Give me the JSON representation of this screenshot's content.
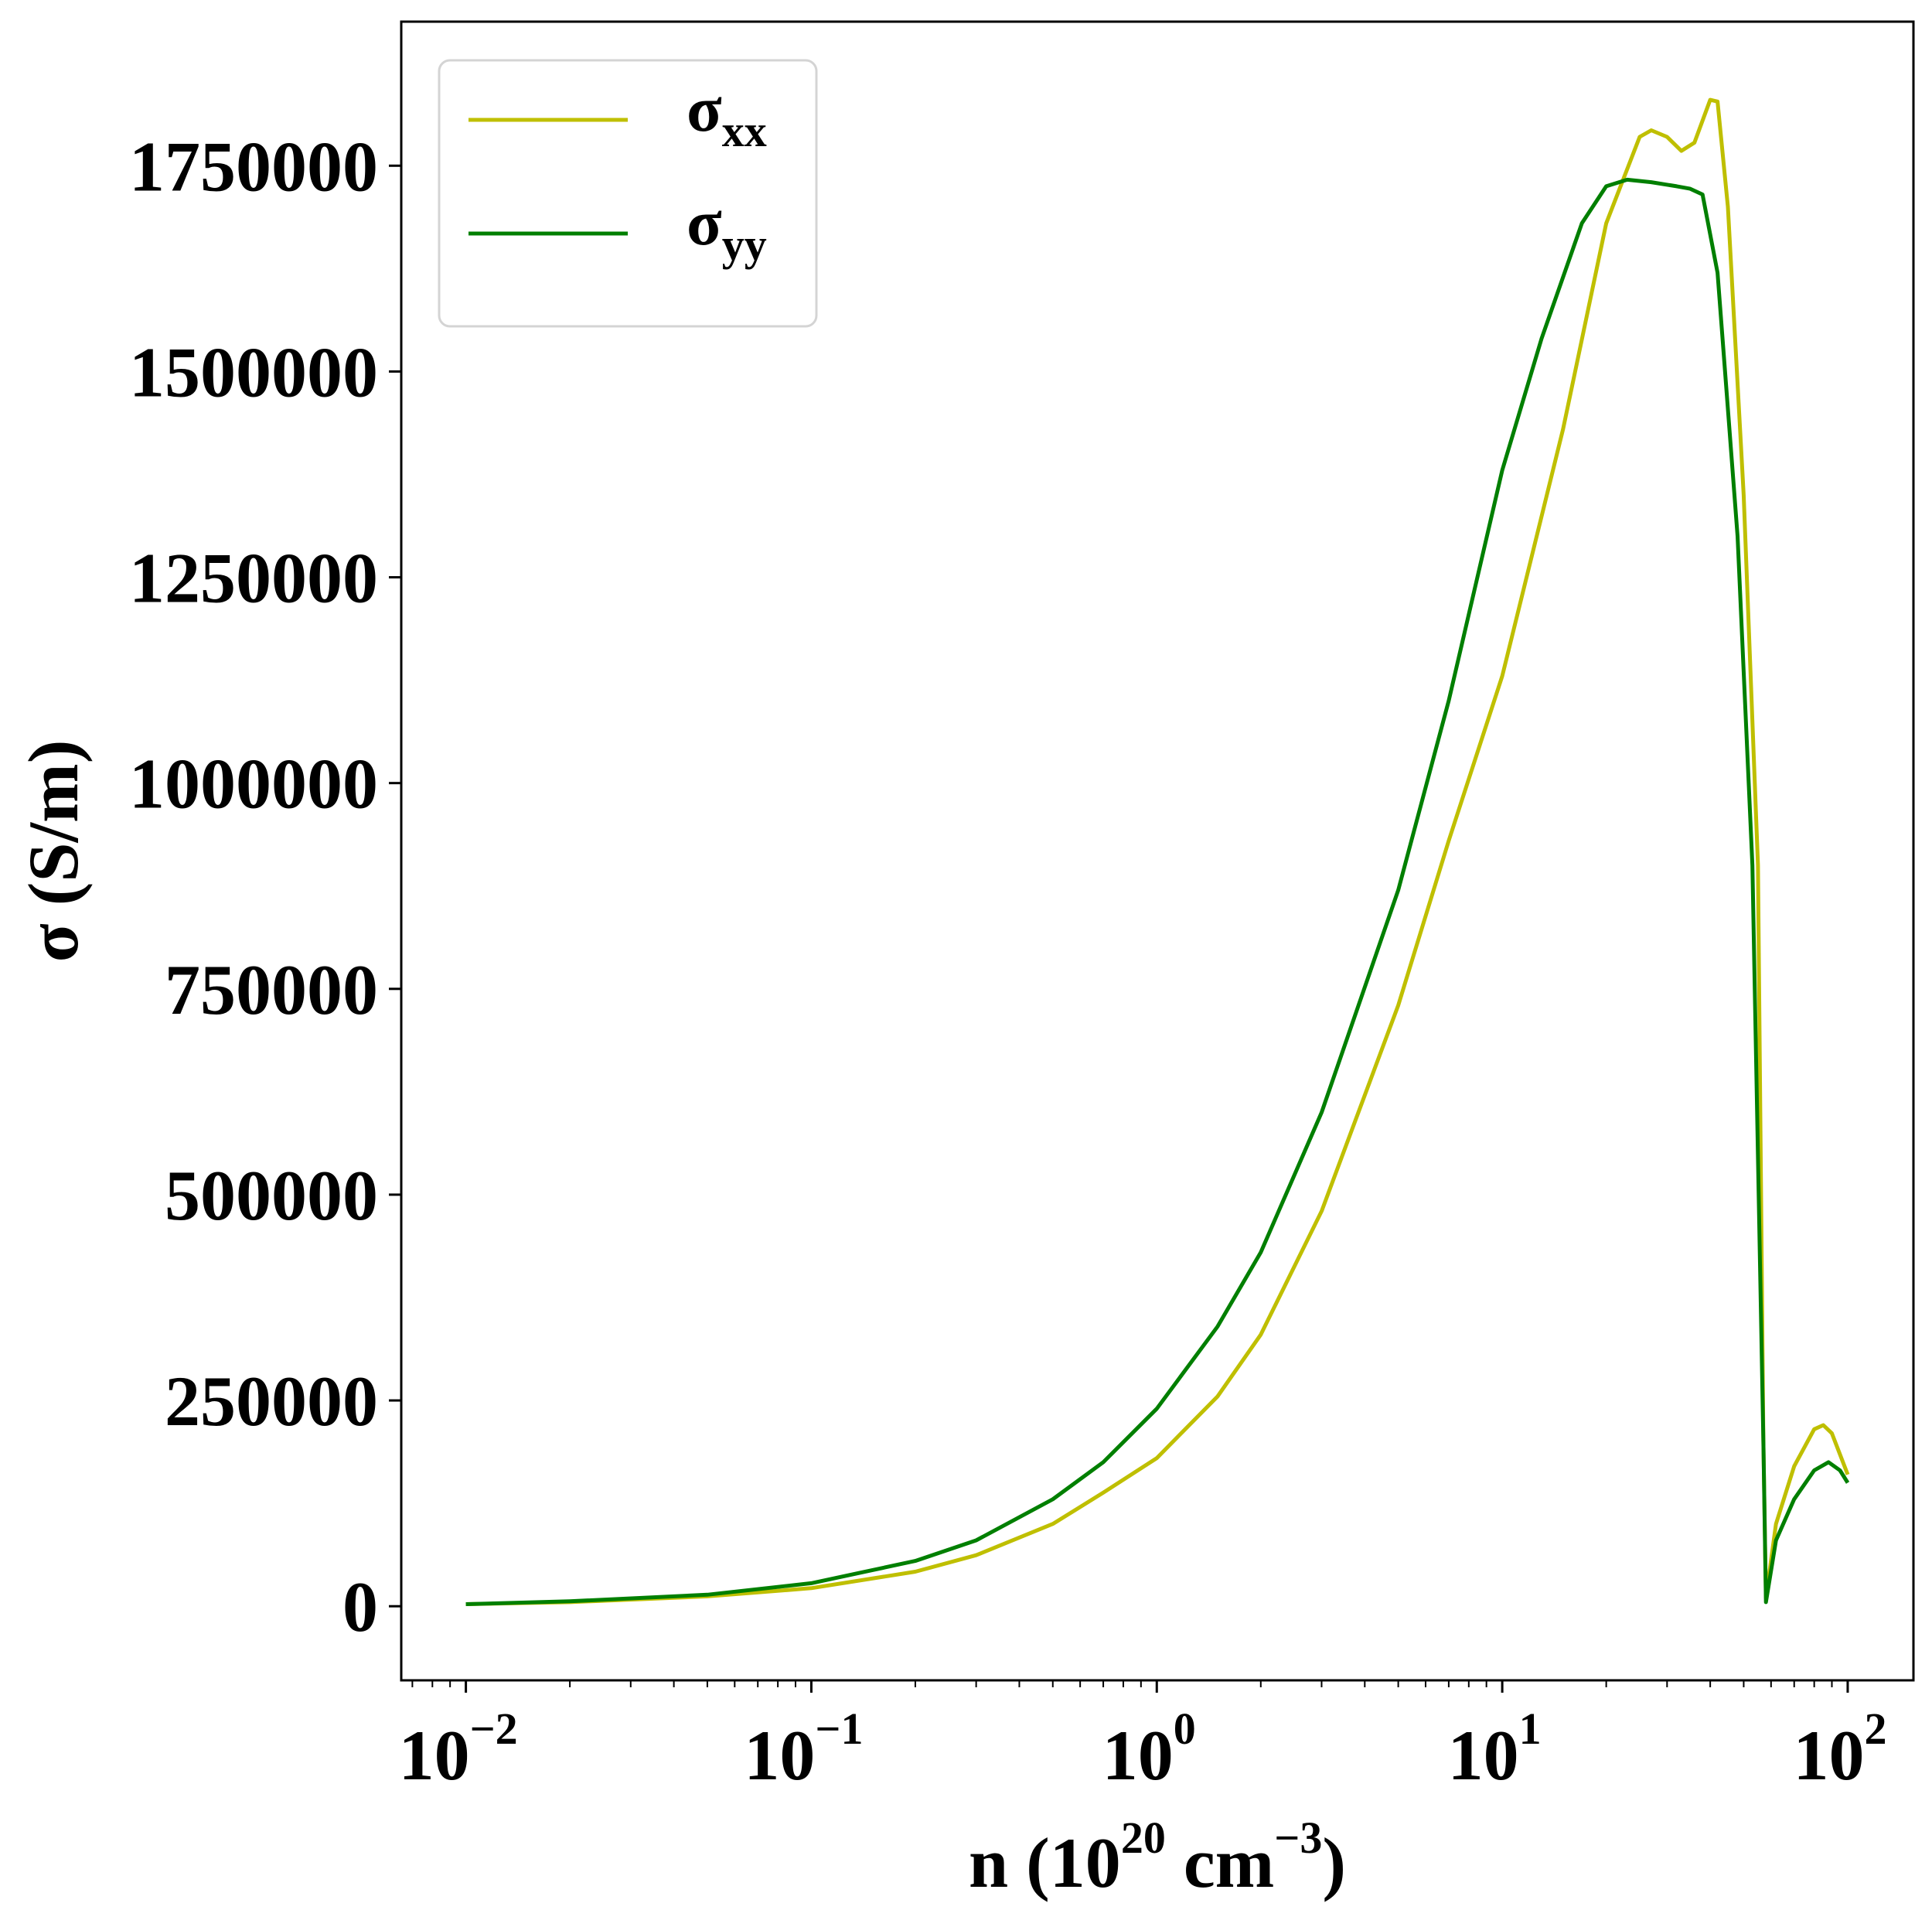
{
  "chart_data": {
    "type": "line",
    "xlabel": {
      "prefix": "n (10",
      "exp1": "20",
      "mid": " cm",
      "exp2": "−3",
      "suffix": ")"
    },
    "ylabel": "σ (S/m)",
    "xscale": "log",
    "xlim": [
      0.0065,
      155
    ],
    "ylim": [
      -90000,
      1925000
    ],
    "x_ticks": [
      {
        "value": 0.01,
        "base": "10",
        "exp": "−2"
      },
      {
        "value": 0.1,
        "base": "10",
        "exp": "−1"
      },
      {
        "value": 1,
        "base": "10",
        "exp": "0"
      },
      {
        "value": 10,
        "base": "10",
        "exp": "1"
      },
      {
        "value": 100,
        "base": "10",
        "exp": "2"
      }
    ],
    "y_ticks": [
      {
        "value": 0,
        "label": "0"
      },
      {
        "value": 250000,
        "label": "250000"
      },
      {
        "value": 500000,
        "label": "500000"
      },
      {
        "value": 750000,
        "label": "750000"
      },
      {
        "value": 1000000,
        "label": "1000000"
      },
      {
        "value": 1250000,
        "label": "1250000"
      },
      {
        "value": 1500000,
        "label": "1500000"
      },
      {
        "value": 1750000,
        "label": "1750000"
      }
    ],
    "grid": false,
    "legend_position": "top-left",
    "series": [
      {
        "name": "σ",
        "sub": "xx",
        "color": "#bfbf00",
        "points": [
          [
            0.01,
            2500
          ],
          [
            0.02,
            5000
          ],
          [
            0.05,
            12000
          ],
          [
            0.1,
            22000
          ],
          [
            0.2,
            42000
          ],
          [
            0.3,
            62000
          ],
          [
            0.5,
            100000
          ],
          [
            0.7,
            138000
          ],
          [
            1,
            180000
          ],
          [
            1.5,
            255000
          ],
          [
            2,
            330000
          ],
          [
            3,
            480000
          ],
          [
            5,
            730000
          ],
          [
            7,
            930000
          ],
          [
            10,
            1130000
          ],
          [
            15,
            1430000
          ],
          [
            20,
            1680000
          ],
          [
            25,
            1785000
          ],
          [
            27,
            1793000
          ],
          [
            30,
            1785000
          ],
          [
            33,
            1768000
          ],
          [
            36,
            1778000
          ],
          [
            40,
            1830000
          ],
          [
            42,
            1828000
          ],
          [
            45,
            1700000
          ],
          [
            50,
            1350000
          ],
          [
            55,
            900000
          ],
          [
            57,
            200000
          ],
          [
            58,
            10000
          ],
          [
            62,
            100000
          ],
          [
            70,
            170000
          ],
          [
            80,
            215000
          ],
          [
            85,
            220000
          ],
          [
            90,
            210000
          ],
          [
            100,
            160000
          ]
        ]
      },
      {
        "name": "σ",
        "sub": "yy",
        "color": "#007f00",
        "points": [
          [
            0.01,
            2500
          ],
          [
            0.02,
            6000
          ],
          [
            0.05,
            14000
          ],
          [
            0.1,
            28000
          ],
          [
            0.2,
            55000
          ],
          [
            0.3,
            80000
          ],
          [
            0.5,
            130000
          ],
          [
            0.7,
            175000
          ],
          [
            1,
            240000
          ],
          [
            1.5,
            340000
          ],
          [
            2,
            430000
          ],
          [
            3,
            600000
          ],
          [
            5,
            870000
          ],
          [
            7,
            1100000
          ],
          [
            10,
            1380000
          ],
          [
            13,
            1540000
          ],
          [
            17,
            1680000
          ],
          [
            20,
            1725000
          ],
          [
            23,
            1733000
          ],
          [
            27,
            1730000
          ],
          [
            32,
            1725000
          ],
          [
            35,
            1722000
          ],
          [
            38,
            1715000
          ],
          [
            42,
            1620000
          ],
          [
            48,
            1300000
          ],
          [
            53,
            900000
          ],
          [
            57,
            200000
          ],
          [
            58,
            5000
          ],
          [
            62,
            80000
          ],
          [
            70,
            130000
          ],
          [
            80,
            165000
          ],
          [
            88,
            175000
          ],
          [
            95,
            165000
          ],
          [
            100,
            150000
          ]
        ]
      }
    ]
  }
}
